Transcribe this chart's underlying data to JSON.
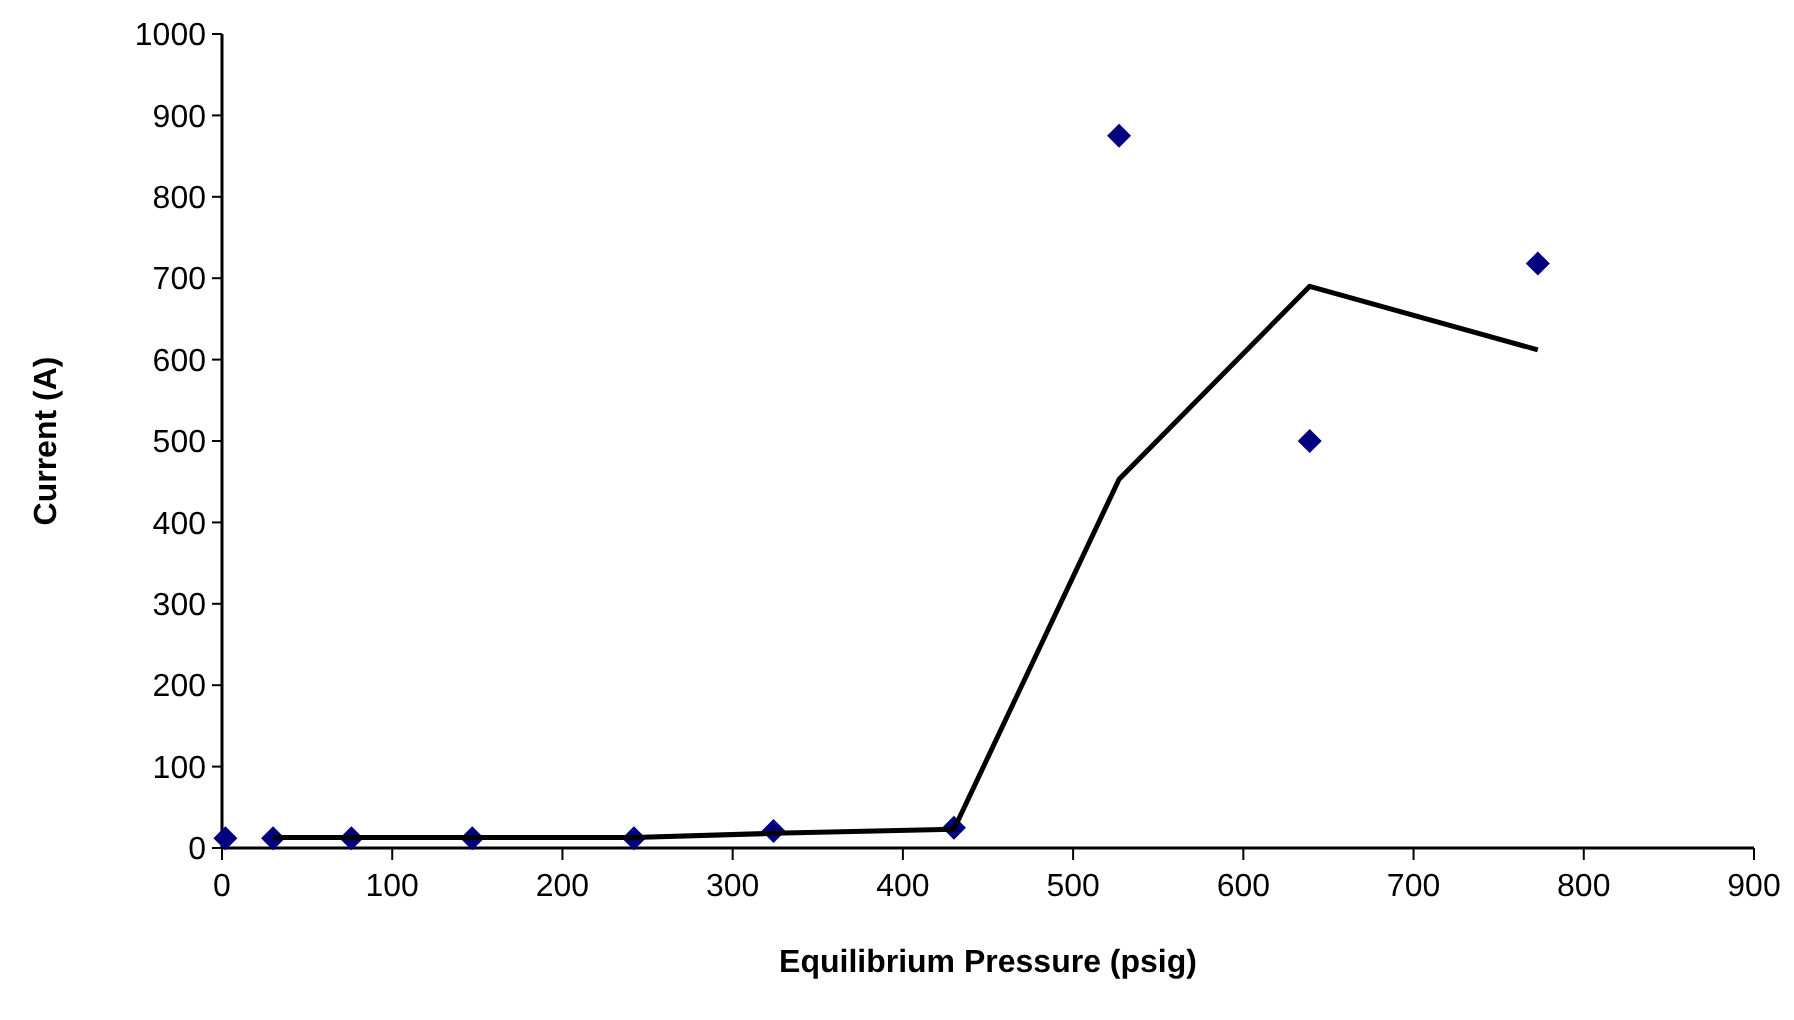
{
  "chart_data": {
    "type": "scatter",
    "xlabel": "Equilibrium Pressure (psig)",
    "ylabel": "Current (A)",
    "xlim": [
      0,
      900
    ],
    "ylim": [
      0,
      1000
    ],
    "xticks": [
      0,
      100,
      200,
      300,
      400,
      500,
      600,
      700,
      800,
      900
    ],
    "yticks": [
      0,
      100,
      200,
      300,
      400,
      500,
      600,
      700,
      800,
      900,
      1000
    ],
    "grid": false,
    "series": [
      {
        "color": "#000080",
        "marker": "diamond",
        "x": [
          2,
          30,
          76,
          147,
          242,
          324,
          430,
          527,
          639,
          773
        ],
        "values": [
          12,
          12,
          12,
          12,
          12,
          21,
          25,
          875,
          500,
          718
        ]
      },
      {
        "type": "line",
        "color": "#000000",
        "line_style": "solid",
        "marker": "none",
        "x": [
          30,
          76,
          147,
          242,
          324,
          430,
          527,
          639,
          773
        ],
        "values": [
          13,
          13,
          13,
          13,
          18,
          23,
          453,
          690,
          612
        ]
      }
    ]
  }
}
